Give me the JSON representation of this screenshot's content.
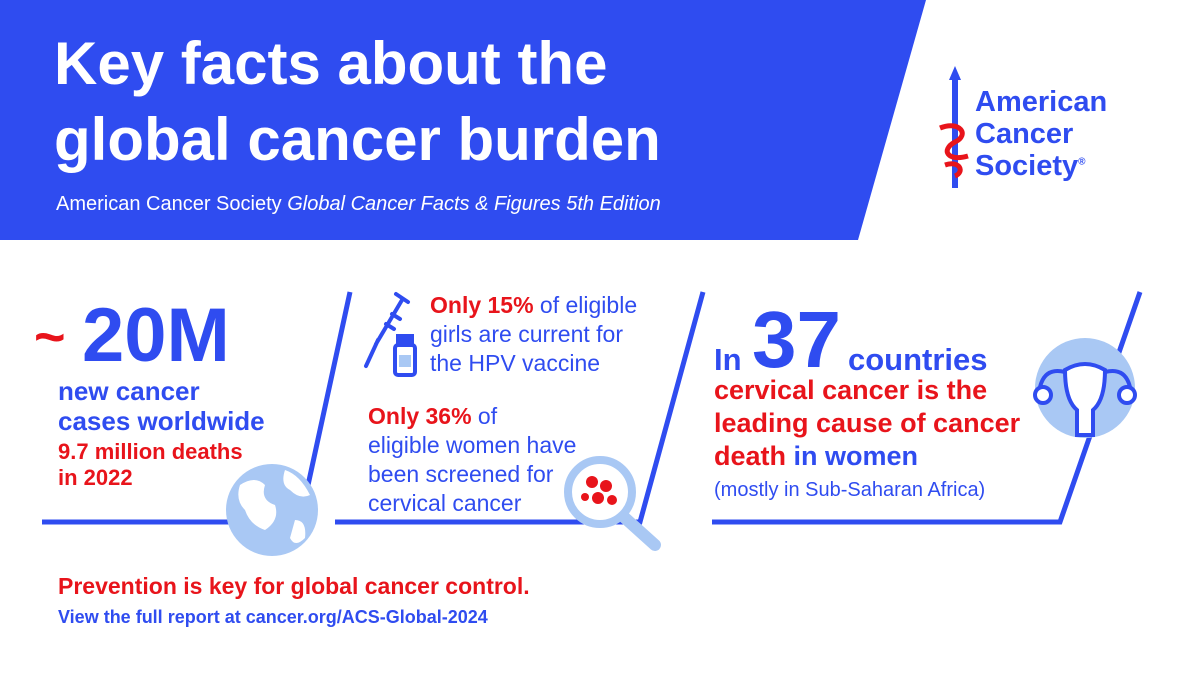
{
  "header": {
    "title": [
      "Key facts about the",
      "global cancer burden"
    ],
    "subtitle": "American Cancer Society",
    "subtitle_italic": "Global Cancer Facts & Figures 5th Edition"
  },
  "logo": {
    "lines": [
      "American",
      "Cancer",
      "Society"
    ],
    "mark": "®"
  },
  "facts": [
    {
      "tilde": "~",
      "number": "20M",
      "lines": [
        "new cancer",
        "cases worldwide"
      ],
      "red_lines": [
        "9.7 million deaths",
        "in 2022"
      ]
    },
    {
      "items": [
        {
          "highlight": "Only 15%",
          "rest": " of eligible",
          "lines": [
            "girls are current for",
            "the HPV vaccine"
          ]
        },
        {
          "highlight": "Only 36%",
          "rest": " of",
          "lines": [
            "eligible women have",
            "been screened for",
            "cervical cancer"
          ]
        }
      ]
    },
    {
      "prefix": "In",
      "number": "37",
      "suffix": "countries",
      "red_lines": [
        "cervical cancer is the",
        "leading cause of cancer"
      ],
      "last_red": "death",
      "last_blue": " in women",
      "note": "(mostly in Sub-Saharan Africa)"
    }
  ],
  "footer": {
    "headline": "Prevention is key for global cancer control.",
    "link_prefix": "View the full report at ",
    "link": "cancer.org/ACS-Global-2024"
  }
}
